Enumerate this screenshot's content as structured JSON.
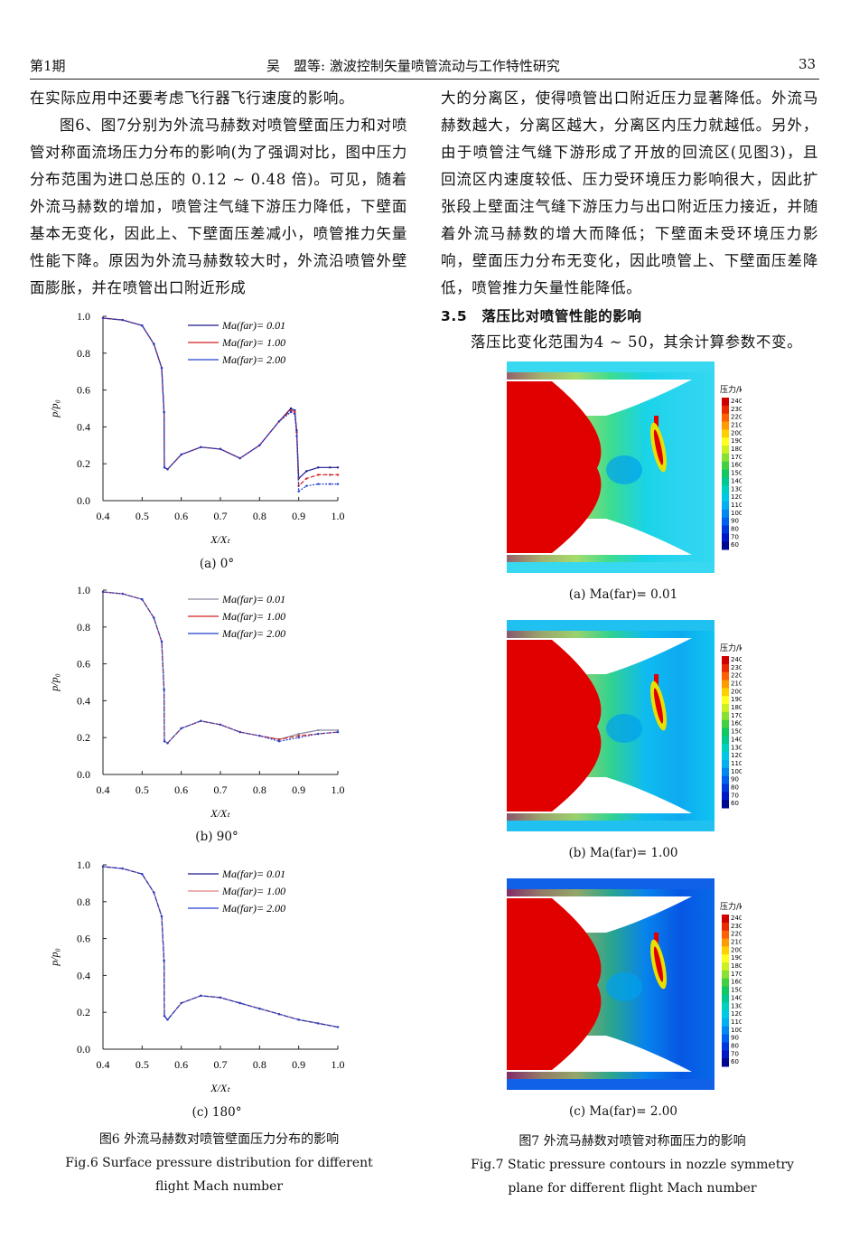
{
  "header": {
    "issue": "第1期",
    "title": "吴　盟等: 激波控制矢量喷管流动与工作特性研究",
    "page": "33"
  },
  "left_text": [
    "在实际应用中还要考虑飞行器飞行速度的影响。",
    "图6、图7分别为外流马赫数对喷管壁面压力和对喷管对称面流场压力分布的影响(为了强调对比，图中压力分布范围为进口总压的 0.12 ~ 0.48 倍)。可见，随着外流马赫数的增加，喷管注气缝下游压力降低，下壁面基本无变化，因此上、下壁面压差减小，喷管推力矢量性能下降。原因为外流马赫数较大时，外流沿喷管外壁面膨胀，并在喷管出口附近形成"
  ],
  "right_text": [
    "大的分离区，使得喷管出口附近压力显著降低。外流马赫数越大，分离区越大，分离区内压力就越低。另外，由于喷管注气缝下游形成了开放的回流区(见图3)，且回流区内速度较低、压力受环境压力影响很大，因此扩张段上壁面注气缝下游压力与出口附近压力接近，并随着外流马赫数的增大而降低；下壁面未受环境压力影响，壁面压力分布无变化，因此喷管上、下壁面压差降低，喷管推力矢量性能降低。"
  ],
  "section": {
    "title": "3.5　落压比对喷管性能的影响",
    "text": "落压比变化范围为4 ~ 50，其余计算参数不变。"
  },
  "fig6": {
    "caption_cn": "图6 外流马赫数对喷管壁面压力分布的影响",
    "caption_en1": "Fig.6  Surface pressure distribution for different",
    "caption_en2": "flight Mach number",
    "subplots": [
      {
        "label": "(a)  0°"
      },
      {
        "label": "(b)  90°"
      },
      {
        "label": "(c)  180°"
      }
    ]
  },
  "fig7": {
    "caption_cn": "图7 外流马赫数对喷管对称面压力的影响",
    "caption_en1": "Fig.7  Static pressure contours in nozzle symmetry",
    "caption_en2": "plane for different flight Mach number",
    "colorbar_title": "压力/kPa",
    "colorbar_levels": [
      "240",
      "230",
      "220",
      "210",
      "200",
      "190",
      "180",
      "170",
      "160",
      "150",
      "140",
      "130",
      "120",
      "110",
      "100",
      "90",
      "80",
      "70",
      "60"
    ],
    "panels": [
      {
        "label": "(a)  Ma(far)= 0.01"
      },
      {
        "label": "(b)  Ma(far)= 1.00"
      },
      {
        "label": "(c)  Ma(far)= 2.00"
      }
    ]
  },
  "chart_data": [
    {
      "type": "line",
      "title": "(a) 0°",
      "xlabel": "X/X_t",
      "ylabel": "p/p_0",
      "xlim": [
        0.4,
        1.0
      ],
      "ylim": [
        0.0,
        1.0
      ],
      "xticks": [
        "0.4",
        "0.5",
        "0.6",
        "0.7",
        "0.8",
        "0.9",
        "1.0"
      ],
      "yticks": [
        "0.0",
        "0.2",
        "0.4",
        "0.6",
        "0.8",
        "1.0"
      ],
      "legend": "top-right",
      "series": [
        {
          "name": "Ma(far)= 0.01",
          "color": "#1a1a8c",
          "x": [
            0.4,
            0.45,
            0.5,
            0.53,
            0.55,
            0.556,
            0.557,
            0.565,
            0.6,
            0.65,
            0.7,
            0.75,
            0.8,
            0.85,
            0.88,
            0.89,
            0.895,
            0.9,
            0.92,
            0.95,
            0.98,
            1.0
          ],
          "y": [
            0.99,
            0.98,
            0.95,
            0.85,
            0.72,
            0.48,
            0.18,
            0.17,
            0.25,
            0.29,
            0.28,
            0.23,
            0.3,
            0.43,
            0.5,
            0.49,
            0.38,
            0.12,
            0.16,
            0.18,
            0.18,
            0.18
          ]
        },
        {
          "name": "Ma(far)= 1.00",
          "color": "#d42020",
          "x": [
            0.4,
            0.45,
            0.5,
            0.53,
            0.55,
            0.556,
            0.557,
            0.565,
            0.6,
            0.65,
            0.7,
            0.75,
            0.8,
            0.85,
            0.88,
            0.89,
            0.895,
            0.9,
            0.92,
            0.95,
            0.98,
            1.0
          ],
          "y": [
            0.99,
            0.98,
            0.95,
            0.85,
            0.72,
            0.48,
            0.18,
            0.17,
            0.25,
            0.29,
            0.28,
            0.23,
            0.3,
            0.43,
            0.49,
            0.48,
            0.37,
            0.08,
            0.12,
            0.14,
            0.14,
            0.14
          ]
        },
        {
          "name": "Ma(far)= 2.00",
          "color": "#2040d0",
          "x": [
            0.4,
            0.45,
            0.5,
            0.53,
            0.55,
            0.556,
            0.557,
            0.565,
            0.6,
            0.65,
            0.7,
            0.75,
            0.8,
            0.85,
            0.88,
            0.89,
            0.895,
            0.9,
            0.92,
            0.95,
            0.98,
            1.0
          ],
          "y": [
            0.99,
            0.98,
            0.95,
            0.85,
            0.72,
            0.48,
            0.18,
            0.17,
            0.25,
            0.29,
            0.28,
            0.23,
            0.3,
            0.43,
            0.48,
            0.47,
            0.35,
            0.05,
            0.08,
            0.09,
            0.09,
            0.09
          ]
        }
      ]
    },
    {
      "type": "line",
      "title": "(b) 90°",
      "xlabel": "X/X_t",
      "ylabel": "p/p_0",
      "xlim": [
        0.4,
        1.0
      ],
      "ylim": [
        0.0,
        1.0
      ],
      "xticks": [
        "0.4",
        "0.5",
        "0.6",
        "0.7",
        "0.8",
        "0.9",
        "1.0"
      ],
      "yticks": [
        "0.0",
        "0.2",
        "0.4",
        "0.6",
        "0.8",
        "1.0"
      ],
      "legend": "top-right",
      "series": [
        {
          "name": "Ma(far)= 0.01",
          "color": "#8a8aa0",
          "x": [
            0.4,
            0.45,
            0.5,
            0.53,
            0.55,
            0.556,
            0.557,
            0.565,
            0.6,
            0.65,
            0.7,
            0.75,
            0.8,
            0.85,
            0.9,
            0.95,
            1.0
          ],
          "y": [
            0.99,
            0.98,
            0.95,
            0.85,
            0.72,
            0.46,
            0.18,
            0.17,
            0.25,
            0.29,
            0.27,
            0.23,
            0.21,
            0.19,
            0.22,
            0.24,
            0.24
          ]
        },
        {
          "name": "Ma(far)= 1.00",
          "color": "#d42020",
          "x": [
            0.4,
            0.45,
            0.5,
            0.53,
            0.55,
            0.556,
            0.557,
            0.565,
            0.6,
            0.65,
            0.7,
            0.75,
            0.8,
            0.85,
            0.9,
            0.95,
            1.0
          ],
          "y": [
            0.99,
            0.98,
            0.95,
            0.85,
            0.72,
            0.46,
            0.18,
            0.17,
            0.25,
            0.29,
            0.27,
            0.23,
            0.21,
            0.19,
            0.21,
            0.22,
            0.23
          ]
        },
        {
          "name": "Ma(far)= 2.00",
          "color": "#2040d0",
          "x": [
            0.4,
            0.45,
            0.5,
            0.53,
            0.55,
            0.556,
            0.557,
            0.565,
            0.6,
            0.65,
            0.7,
            0.75,
            0.8,
            0.85,
            0.9,
            0.95,
            1.0
          ],
          "y": [
            0.99,
            0.98,
            0.95,
            0.85,
            0.72,
            0.46,
            0.18,
            0.17,
            0.25,
            0.29,
            0.27,
            0.23,
            0.21,
            0.18,
            0.2,
            0.22,
            0.23
          ]
        }
      ]
    },
    {
      "type": "line",
      "title": "(c) 180°",
      "xlabel": "X/X_t",
      "ylabel": "p/p_0",
      "xlim": [
        0.4,
        1.0
      ],
      "ylim": [
        0.0,
        1.0
      ],
      "xticks": [
        "0.4",
        "0.5",
        "0.6",
        "0.7",
        "0.8",
        "0.9",
        "1.0"
      ],
      "yticks": [
        "0.0",
        "0.2",
        "0.4",
        "0.6",
        "0.8",
        "1.0"
      ],
      "legend": "top-right",
      "series": [
        {
          "name": "Ma(far)= 0.01",
          "color": "#1a1a8c",
          "x": [
            0.4,
            0.45,
            0.5,
            0.53,
            0.55,
            0.556,
            0.557,
            0.565,
            0.6,
            0.65,
            0.7,
            0.75,
            0.8,
            0.85,
            0.9,
            0.95,
            1.0
          ],
          "y": [
            0.99,
            0.98,
            0.95,
            0.85,
            0.72,
            0.48,
            0.18,
            0.16,
            0.25,
            0.29,
            0.28,
            0.25,
            0.22,
            0.19,
            0.16,
            0.14,
            0.12
          ]
        },
        {
          "name": "Ma(far)= 1.00",
          "color": "#e08080",
          "x": [
            0.4,
            0.45,
            0.5,
            0.53,
            0.55,
            0.556,
            0.557,
            0.565,
            0.6,
            0.65,
            0.7,
            0.75,
            0.8,
            0.85,
            0.9,
            0.95,
            1.0
          ],
          "y": [
            0.99,
            0.98,
            0.95,
            0.85,
            0.72,
            0.48,
            0.18,
            0.16,
            0.25,
            0.29,
            0.28,
            0.25,
            0.22,
            0.19,
            0.16,
            0.14,
            0.12
          ]
        },
        {
          "name": "Ma(far)= 2.00",
          "color": "#2040d0",
          "x": [
            0.4,
            0.45,
            0.5,
            0.53,
            0.55,
            0.556,
            0.557,
            0.565,
            0.6,
            0.65,
            0.7,
            0.75,
            0.8,
            0.85,
            0.9,
            0.95,
            1.0
          ],
          "y": [
            0.99,
            0.98,
            0.95,
            0.85,
            0.72,
            0.48,
            0.18,
            0.16,
            0.25,
            0.29,
            0.28,
            0.25,
            0.22,
            0.19,
            0.16,
            0.14,
            0.12
          ]
        }
      ]
    }
  ]
}
